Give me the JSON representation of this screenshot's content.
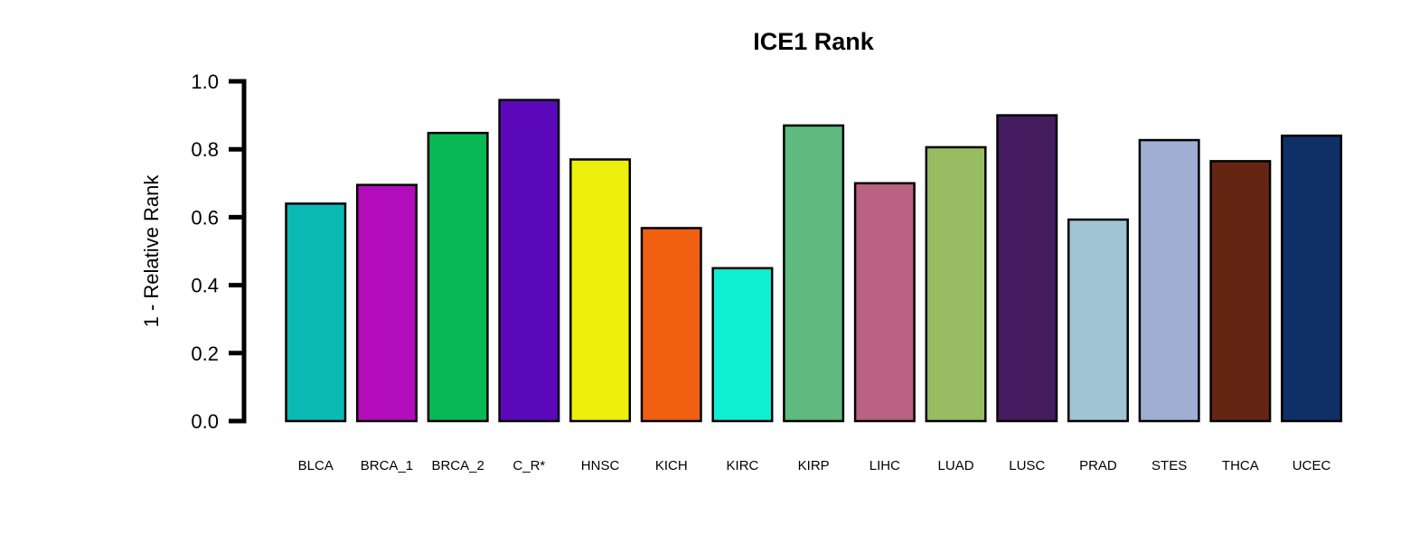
{
  "chart_data": {
    "type": "bar",
    "title": "ICE1 Rank",
    "xlabel": "",
    "ylabel": "1 - Relative Rank",
    "ylim": [
      0,
      1
    ],
    "yticks": [
      "0.0",
      "0.2",
      "0.4",
      "0.6",
      "0.8",
      "1.0"
    ],
    "grid": false,
    "legend": "none",
    "categories": [
      "BLCA",
      "BRCA_1",
      "BRCA_2",
      "C_R*",
      "HNSC",
      "KICH",
      "KIRC",
      "KIRP",
      "LIHC",
      "LUAD",
      "LUSC",
      "PRAD",
      "STES",
      "THCA",
      "UCEC"
    ],
    "values": [
      0.64,
      0.695,
      0.848,
      0.945,
      0.77,
      0.568,
      0.45,
      0.87,
      0.7,
      0.806,
      0.9,
      0.593,
      0.827,
      0.765,
      0.84
    ],
    "colors": [
      "#0BBAB5",
      "#B30CBA",
      "#08B856",
      "#5B08BA",
      "#EDEF0C",
      "#F06010",
      "#0EEFD2",
      "#5FBA7F",
      "#BB6181",
      "#97BC62",
      "#461C61",
      "#A0C4D3",
      "#9FAED2",
      "#652513",
      "#0E3066"
    ]
  }
}
